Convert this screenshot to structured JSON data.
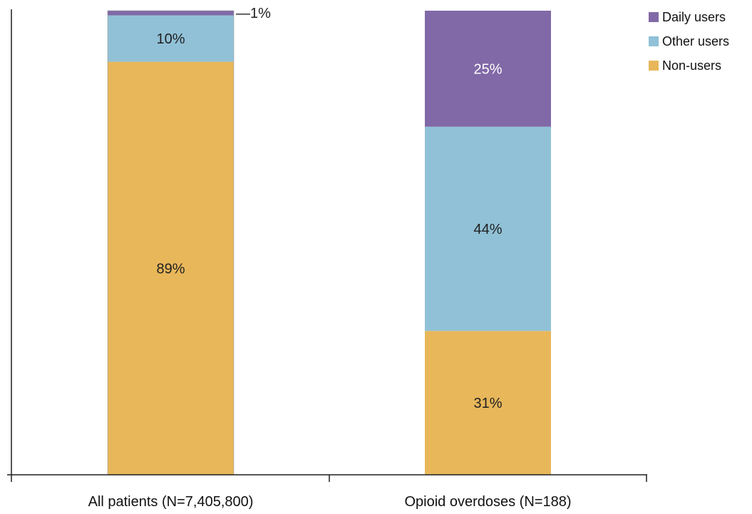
{
  "chart_data": {
    "type": "bar",
    "stacked": true,
    "categories": [
      "All patients (N=7,405,800)",
      "Opioid overdoses (N=188)"
    ],
    "series": [
      {
        "name": "Non-users",
        "values": [
          89,
          31
        ],
        "labels": [
          "89%",
          "31%"
        ],
        "color": "#e8b75a"
      },
      {
        "name": "Other users",
        "values": [
          10,
          44
        ],
        "labels": [
          "10%",
          "44%"
        ],
        "color": "#91c1d7"
      },
      {
        "name": "Daily users",
        "values": [
          1,
          25
        ],
        "labels": [
          "1%",
          "25%"
        ],
        "color": "#8169a7"
      }
    ],
    "callout_label": "—1%",
    "legend_order": [
      "Daily users",
      "Other users",
      "Non-users"
    ],
    "ylim": [
      0,
      100
    ],
    "legend_position": "top-right",
    "grid": false
  }
}
